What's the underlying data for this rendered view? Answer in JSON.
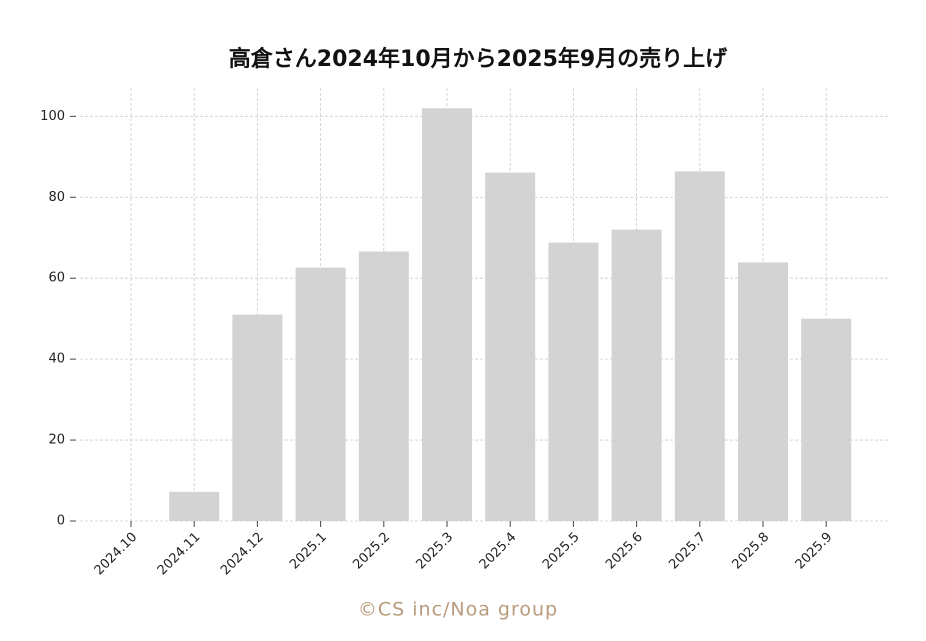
{
  "chart_data": {
    "type": "bar",
    "title": "高倉さん2024年10月から2025年9月の売り上げ",
    "categories": [
      "2024.10",
      "2024.11",
      "2024.12",
      "2025.1",
      "2025.2",
      "2025.3",
      "2025.4",
      "2025.5",
      "2025.6",
      "2025.7",
      "2025.8",
      "2025.9"
    ],
    "values": [
      0,
      7.2,
      51,
      62.6,
      66.6,
      102,
      86.1,
      68.8,
      72,
      86.4,
      63.9,
      50
    ],
    "color": "#d3d3d3",
    "ylim": [
      0,
      107
    ],
    "yticks": [
      0,
      20,
      40,
      60,
      80,
      100
    ],
    "grid": true,
    "footer": "©CS inc/Noa group"
  }
}
